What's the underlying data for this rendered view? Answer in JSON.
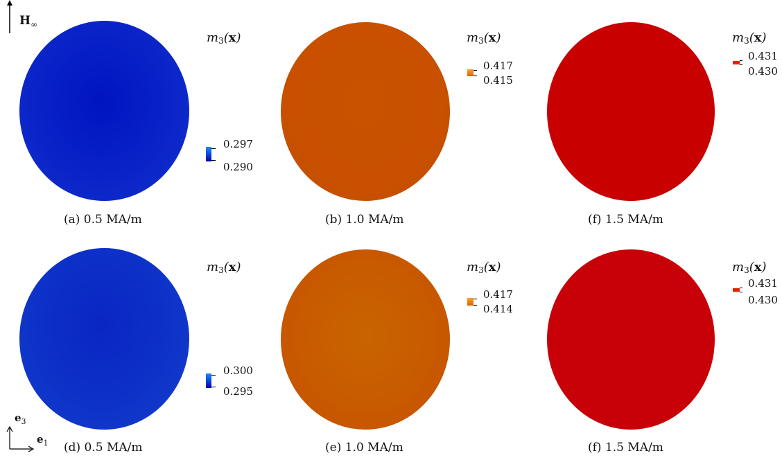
{
  "field_label": {
    "symbol": "H",
    "subscript": "∞"
  },
  "panels": [
    {
      "caption": "(a) 0.5 MA/m",
      "legend_title": "m",
      "legend_sub": "3",
      "legend_arg": "x",
      "tick_high": "0.297",
      "tick_low": "0.290",
      "color": "#0a23c8"
    },
    {
      "caption": "(b) 1.0 MA/m",
      "legend_title": "m",
      "legend_sub": "3",
      "legend_arg": "x",
      "tick_high": "0.417",
      "tick_low": "0.415",
      "color": "#c85000"
    },
    {
      "caption": "(f) 1.5 MA/m",
      "legend_title": "m",
      "legend_sub": "3",
      "legend_arg": "x",
      "tick_high": "0.431",
      "tick_low": "0.430",
      "color": "#c80000"
    },
    {
      "caption": "(d) 0.5 MA/m",
      "legend_title": "m",
      "legend_sub": "3",
      "legend_arg": "x",
      "tick_high": "0.300",
      "tick_low": "0.295",
      "color": "#0d32c8"
    },
    {
      "caption": "(e) 1.0 MA/m",
      "legend_title": "m",
      "legend_sub": "3",
      "legend_arg": "x",
      "tick_high": "0.417",
      "tick_low": "0.414",
      "color": "#c85a00"
    },
    {
      "caption": "(f) 1.5 MA/m",
      "legend_title": "m",
      "legend_sub": "3",
      "legend_arg": "x",
      "tick_high": "0.431",
      "tick_low": "0.430",
      "color": "#c80008"
    }
  ],
  "axes": {
    "vertical": "e",
    "vertical_sub": "3",
    "horizontal": "e",
    "horizontal_sub": "1"
  }
}
